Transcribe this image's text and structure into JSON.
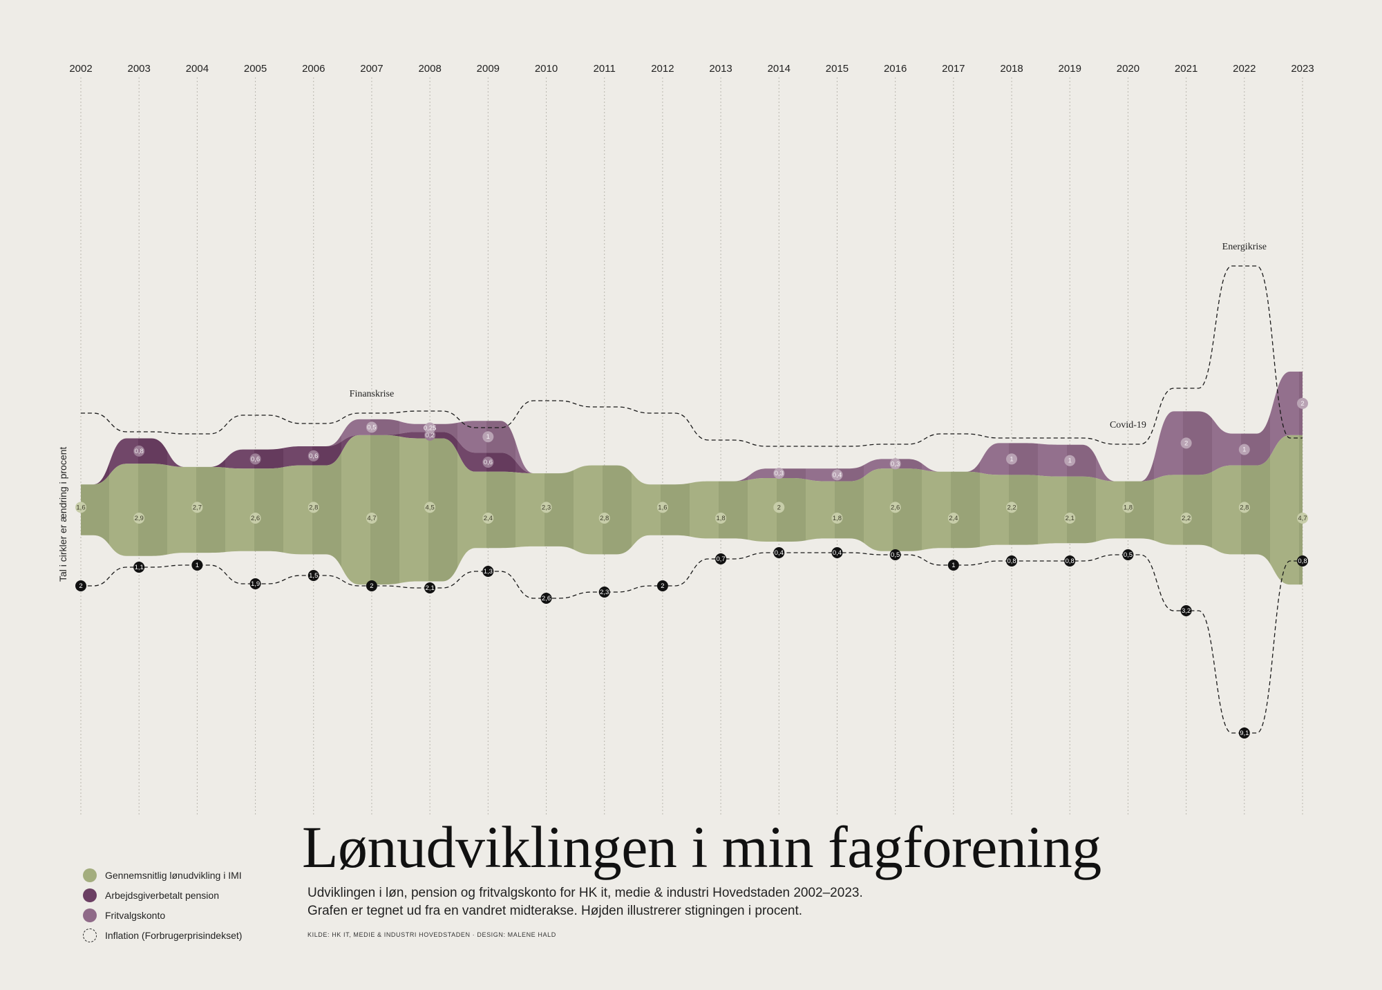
{
  "title": "Lønudviklingen i min fagforening",
  "subtitle_line1": "Udviklingen i løn, pension og fritvalgskonto for HK it, medie & industri Hovedstaden 2002–2023.",
  "subtitle_line2": "Grafen er tegnet ud fra en vandret midterakse. Højden illustrerer stigningen i procent.",
  "source": "KILDE: HK IT, MEDIE & INDUSTRI HOVEDSTADEN · DESIGN: MALENE HALD",
  "colors": {
    "background": "#EEECE7",
    "salary": "#A3AD7E",
    "pension": "#6B3F63",
    "fritvalg": "#8F6A88",
    "inflation_marker": "#111111"
  },
  "legend": [
    {
      "label": "Gennemsnitlig lønudvikling i IMI",
      "color": "#A3AD7E",
      "kind": "fill"
    },
    {
      "label": "Arbejdsgiverbetalt pension",
      "color": "#6B3F63",
      "kind": "fill"
    },
    {
      "label": "Fritvalgskonto",
      "color": "#8F6A88",
      "kind": "fill"
    },
    {
      "label": "Inflation (Forbrugerprisindekset)",
      "color": "#222222",
      "kind": "dashed"
    }
  ],
  "chart_data": {
    "type": "area",
    "subtype": "streamgraph with centered baseline",
    "y_axis_label": "Tal i cirkler er ændring i procent",
    "x": [
      "2002",
      "2003",
      "2004",
      "2005",
      "2006",
      "2007",
      "2008",
      "2009",
      "2010",
      "2011",
      "2012",
      "2013",
      "2014",
      "2015",
      "2016",
      "2017",
      "2018",
      "2019",
      "2020",
      "2021",
      "2022",
      "2023"
    ],
    "series": [
      {
        "name": "Gennemsnitlig lønudvikling i IMI",
        "labels": [
          "1,6",
          "2,9",
          "2,7",
          "2,6",
          "2,8",
          "4,7",
          "4,5",
          "2,4",
          "2,3",
          "2,8",
          "1,6",
          "1,8",
          "2",
          "1,8",
          "2,6",
          "2,4",
          "2,2",
          "2,1",
          "1,8",
          "2,2",
          "2,8",
          "4,7"
        ],
        "values": [
          1.6,
          2.9,
          2.7,
          2.6,
          2.8,
          4.7,
          4.5,
          2.4,
          2.3,
          2.8,
          1.6,
          1.8,
          2,
          1.8,
          2.6,
          2.4,
          2.2,
          2.1,
          1.8,
          2.2,
          2.8,
          4.7
        ]
      },
      {
        "name": "Arbejdsgiverbetalt pension",
        "labels": [
          null,
          "0,8",
          null,
          "0,6",
          "0,6",
          null,
          "0,2",
          "0,6",
          null,
          null,
          null,
          null,
          null,
          null,
          null,
          null,
          null,
          null,
          null,
          null,
          null,
          null
        ],
        "values": [
          0,
          0.8,
          0,
          0.6,
          0.6,
          0,
          0.2,
          0.6,
          0,
          0,
          0,
          0,
          0,
          0,
          0,
          0,
          0,
          0,
          0,
          0,
          0,
          0
        ]
      },
      {
        "name": "Fritvalgskonto",
        "labels": [
          null,
          null,
          null,
          null,
          null,
          "0,5",
          "0,25",
          "1",
          null,
          null,
          null,
          null,
          "0,3",
          "0,4",
          "0,3",
          null,
          "1",
          "1",
          null,
          "2",
          "1",
          "2"
        ],
        "values": [
          0,
          0,
          0,
          0,
          0,
          0.5,
          0.25,
          1,
          0,
          0,
          0,
          0,
          0.3,
          0.4,
          0.3,
          0,
          1,
          1,
          0,
          2,
          1,
          2
        ]
      },
      {
        "name": "Inflation (Forbrugerprisindekset)",
        "labels": [
          "2",
          "1,1",
          "1",
          "1,9",
          "1,5",
          "2",
          "2,1",
          "1,3",
          "2,6",
          "2,3",
          "2",
          "0,7",
          "0,4",
          "0,4",
          "0,5",
          "1",
          "0,8",
          "0,8",
          "0,5",
          "3,2",
          "9,1",
          "0,8"
        ],
        "values": [
          2,
          1.1,
          1,
          1.9,
          1.5,
          2,
          2.1,
          1.3,
          2.6,
          2.3,
          2,
          0.7,
          0.4,
          0.4,
          0.5,
          1,
          0.8,
          0.8,
          0.5,
          3.2,
          9.1,
          0.8
        ]
      }
    ],
    "annotations": [
      {
        "text": "Finanskrise",
        "year": "2007"
      },
      {
        "text": "Covid-19",
        "year": "2020"
      },
      {
        "text": "Energikrise",
        "year": "2022"
      }
    ]
  }
}
